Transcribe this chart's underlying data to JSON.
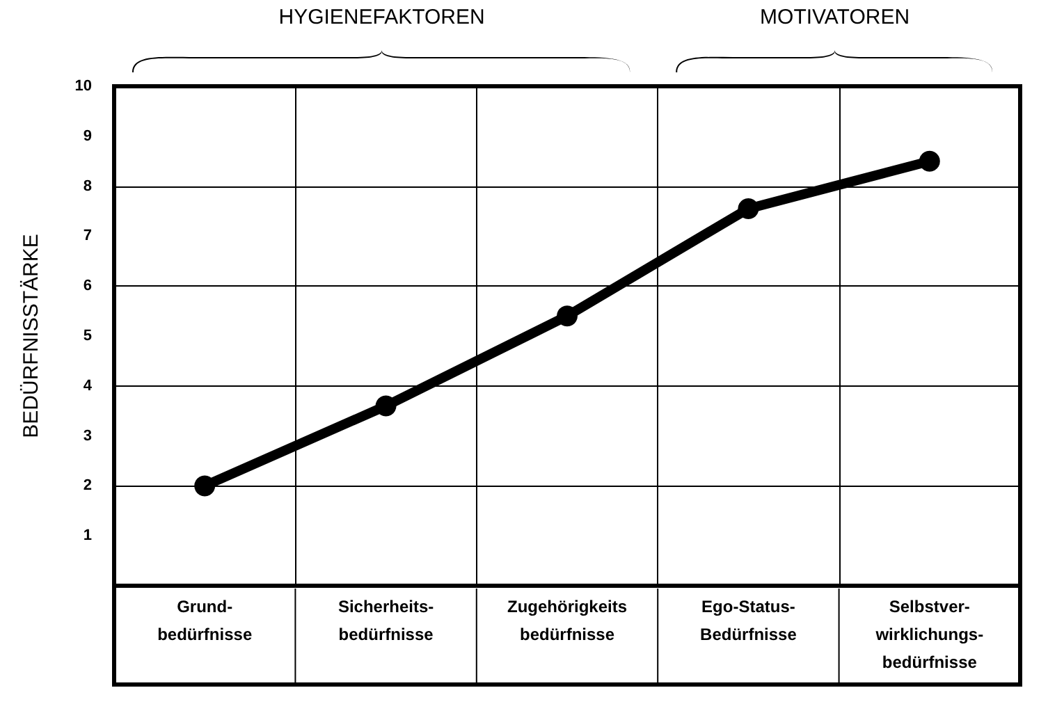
{
  "chart_data": {
    "type": "line",
    "ylabel": "BEDÜRFNISSTÄRKE",
    "annotations": [
      "HYGIENEFAKTOREN",
      "MOTIVATOREN"
    ],
    "categories": [
      "Grund-\nbedürfnisse",
      "Sicherheits-\nbedürfnisse",
      "Zugehörigkeits\nbedürfnisse",
      "Ego-Status-\nBedürfnisse",
      "Selbstver-\nwirklichungs-\nbedürfnisse"
    ],
    "series": [
      {
        "color": "#000000",
        "values": [
          2.0,
          3.6,
          5.4,
          7.55,
          8.5
        ]
      }
    ],
    "ylim": [
      0,
      10
    ],
    "yticks": [
      1,
      2,
      3,
      4,
      5,
      6,
      7,
      8,
      9,
      10
    ],
    "grid": true,
    "marker": "circle",
    "line_style": "solid"
  }
}
